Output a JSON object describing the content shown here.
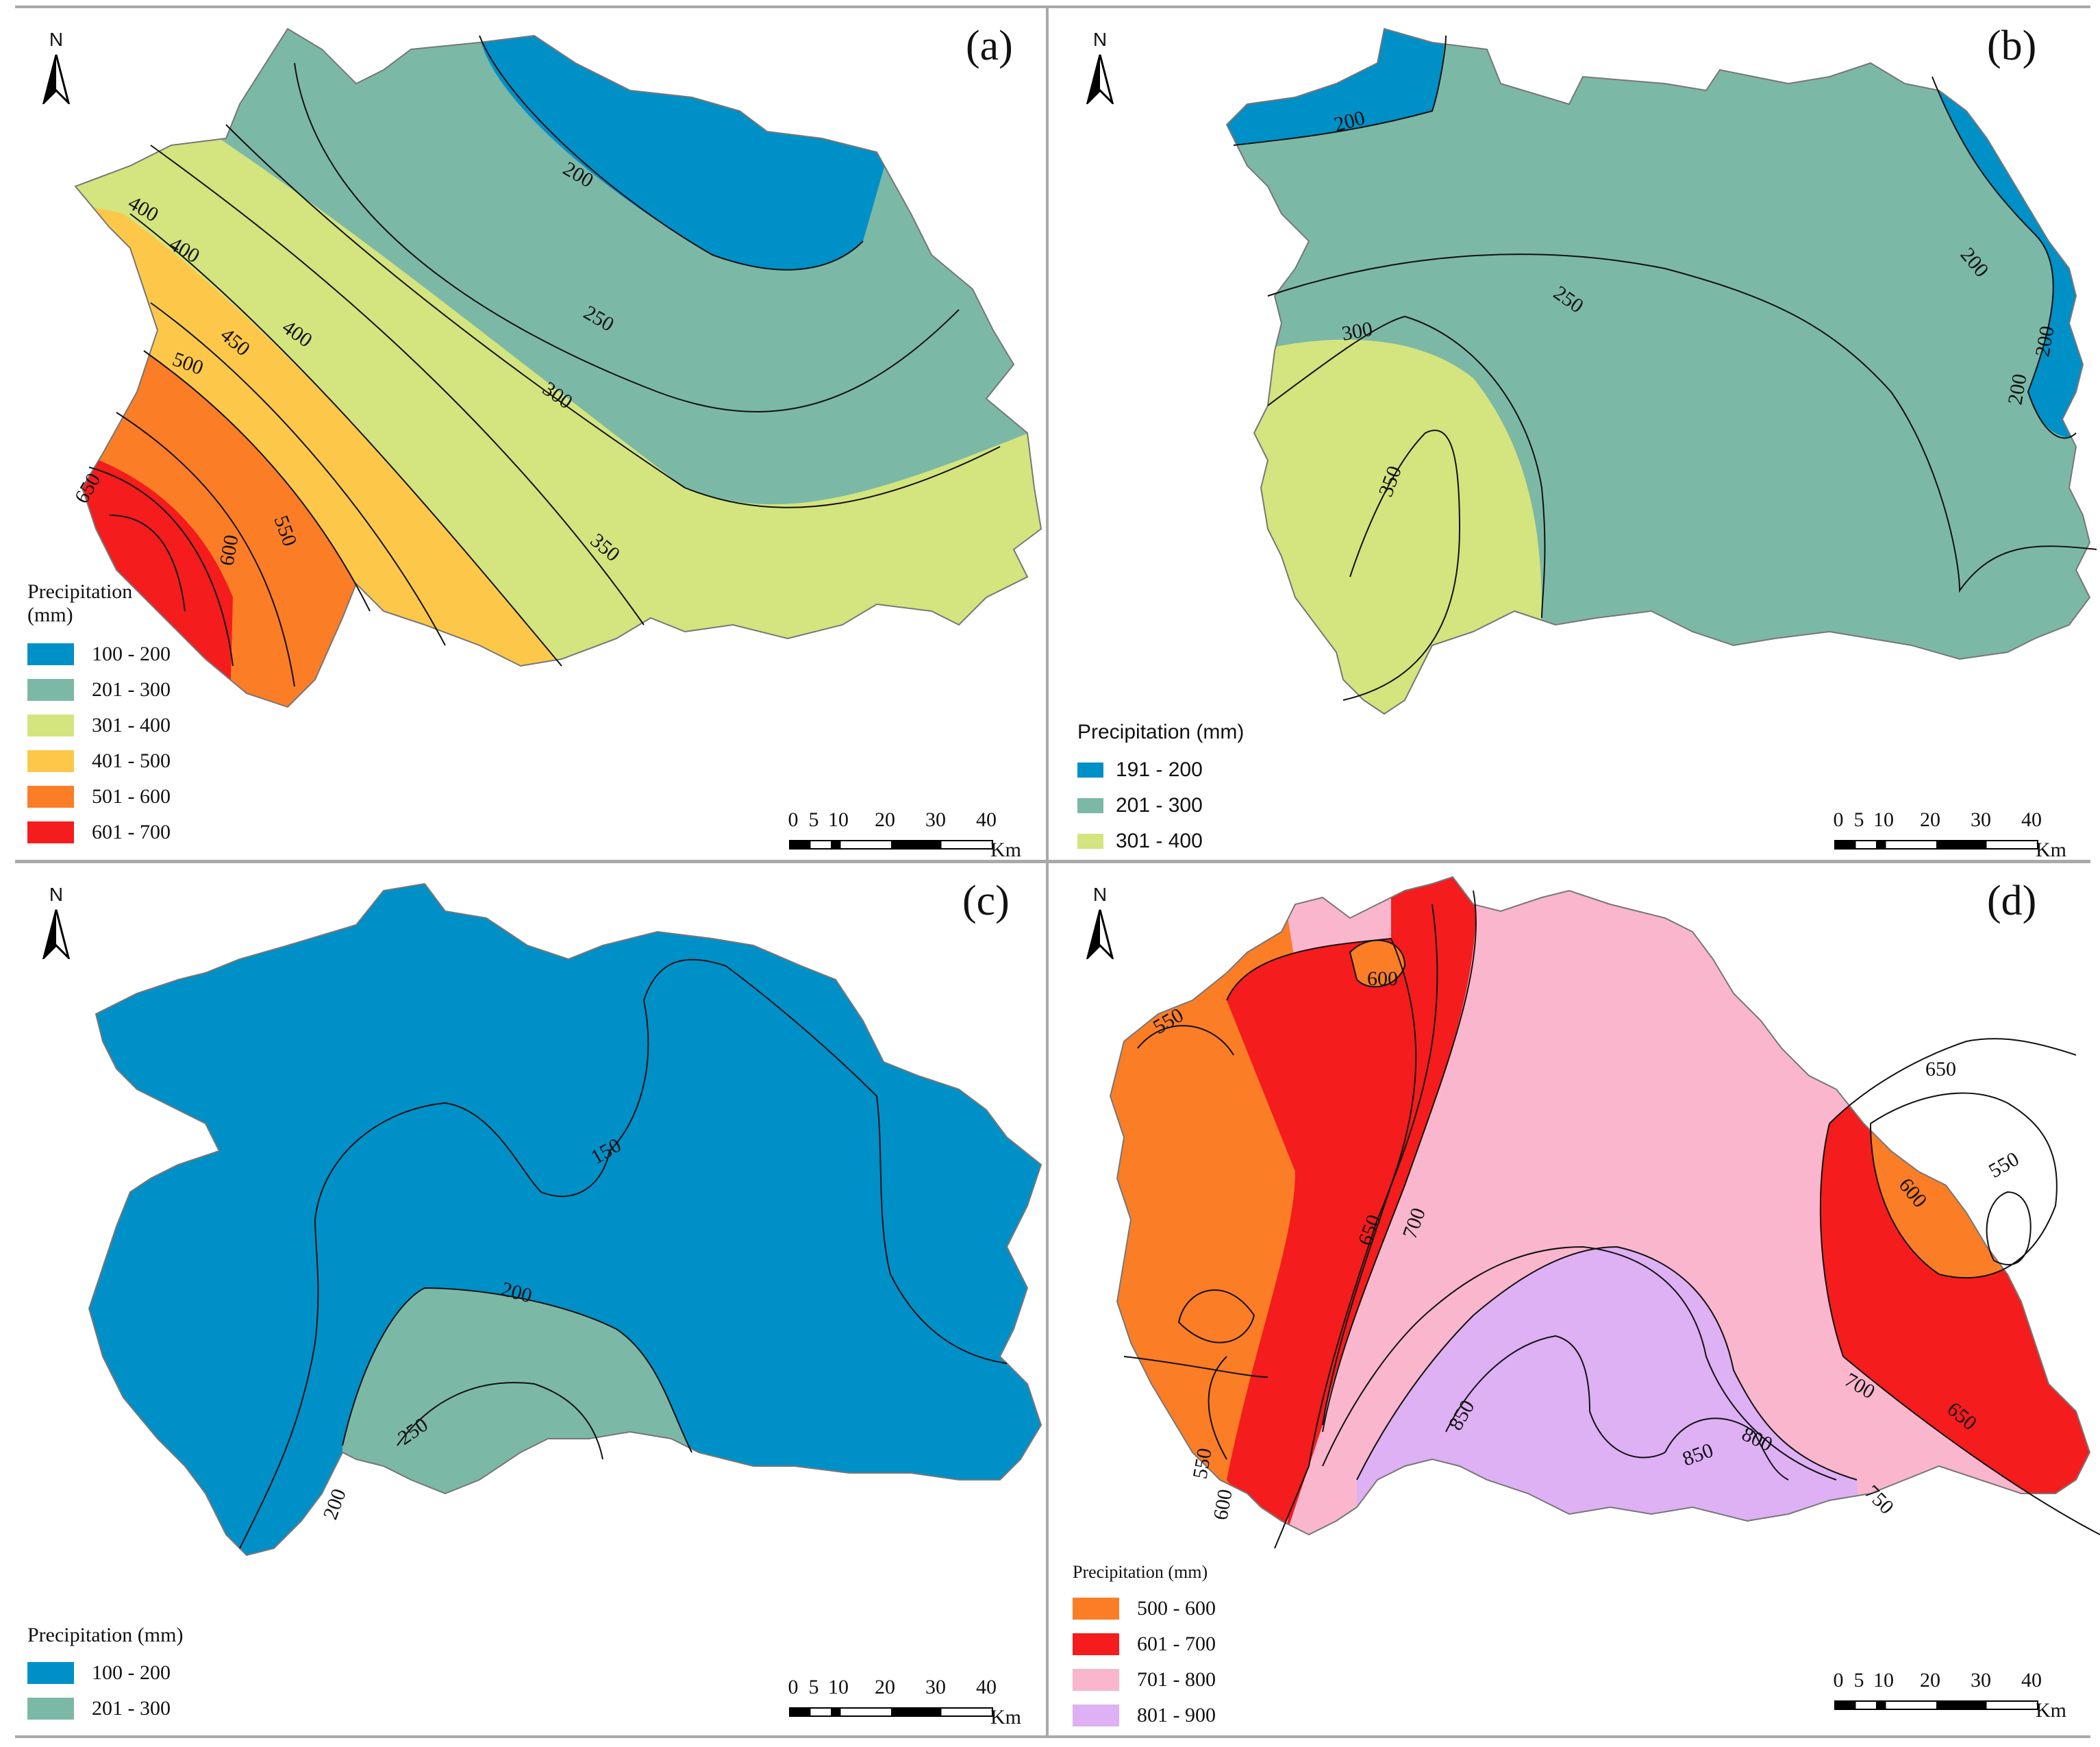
{
  "north_letter": "N",
  "scale": {
    "ticks": [
      "0",
      "5",
      "10",
      "20",
      "30",
      "40"
    ],
    "unit": "Km"
  },
  "colors": {
    "c100_200": "#0090c8",
    "c201_300": "#7cb8a6",
    "c301_400": "#d4e47e",
    "c401_500": "#fdc84a",
    "c501_600": "#fb7d26",
    "c601_700": "#f41c1c",
    "c701_800": "#f9b6cd",
    "c801_900": "#deb0f4"
  },
  "panels": {
    "a": {
      "label": "(a)",
      "legend_title_line1": "Precipitation",
      "legend_title_line2": "(mm)",
      "legend": [
        "100 - 200",
        "201 - 300",
        "301 - 400",
        "401 - 500",
        "501 - 600",
        "601 - 700"
      ],
      "contours": [
        "200",
        "250",
        "300",
        "350",
        "400",
        "400",
        "400",
        "450",
        "500",
        "550",
        "600",
        "650"
      ]
    },
    "b": {
      "label": "(b)",
      "legend_title": "Precipitation (mm)",
      "legend": [
        "191 - 200",
        "201 - 300",
        "301 - 400"
      ],
      "contours": [
        "200",
        "200",
        "200",
        "200",
        "250",
        "300",
        "350"
      ]
    },
    "c": {
      "label": "(c)",
      "legend_title": "Precipitation (mm)",
      "legend": [
        "100 - 200",
        "201 - 300"
      ],
      "contours": [
        "150",
        "200",
        "200",
        "250"
      ]
    },
    "d": {
      "label": "(d)",
      "legend_title": "Precipitation (mm)",
      "legend": [
        "500 - 600",
        "601 - 700",
        "701 - 800",
        "801 - 900"
      ],
      "contours": [
        "600",
        "550",
        "650",
        "700",
        "650",
        "550",
        "600",
        "700",
        "650",
        "800",
        "850",
        "850",
        "750",
        "550",
        "600"
      ]
    }
  }
}
